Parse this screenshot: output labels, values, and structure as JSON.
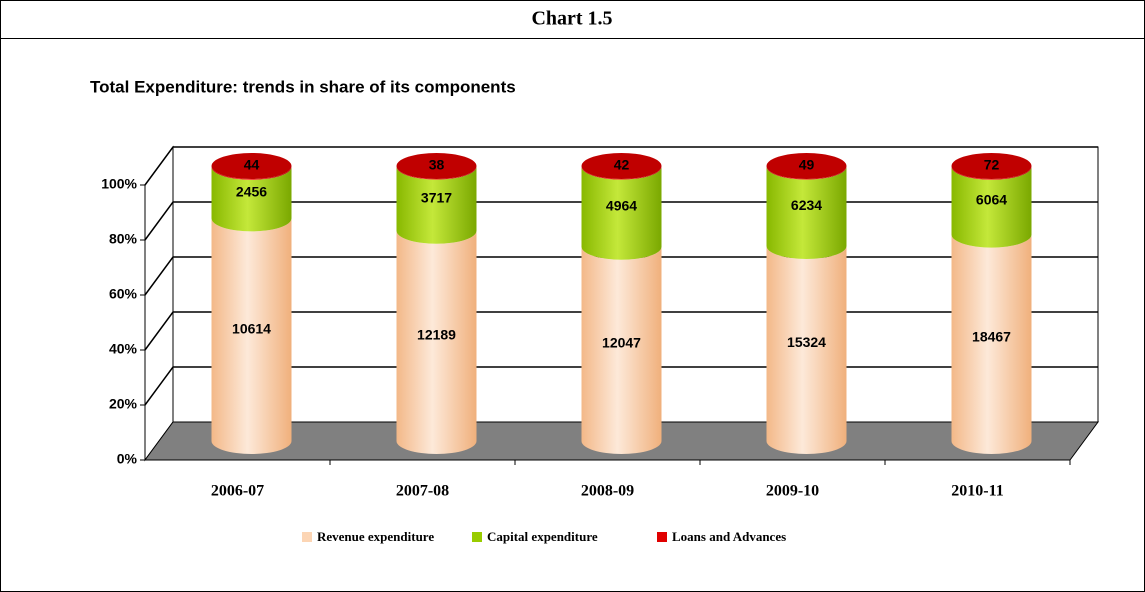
{
  "header": {
    "title": "Chart 1.5"
  },
  "chart_data": {
    "type": "bar",
    "stacking": "percent",
    "title": "Total Expenditure: trends in share of its components",
    "categories": [
      "2006-07",
      "2007-08",
      "2008-09",
      "2009-10",
      "2010-11"
    ],
    "series": [
      {
        "name": "Revenue expenditure",
        "color": "#fcd5b4",
        "values": [
          10614,
          12189,
          12047,
          15324,
          18467
        ]
      },
      {
        "name": "Capital expenditure",
        "color": "#99cc00",
        "values": [
          2456,
          3717,
          4964,
          6234,
          6064
        ]
      },
      {
        "name": "Loans and Advances",
        "color": "#e00000",
        "values": [
          44,
          38,
          42,
          49,
          72
        ]
      }
    ],
    "ylim": [
      0,
      100
    ],
    "yticks": [
      {
        "value": 0,
        "label": "0%"
      },
      {
        "value": 20,
        "label": "20%"
      },
      {
        "value": 40,
        "label": "40%"
      },
      {
        "value": 60,
        "label": "60%"
      },
      {
        "value": 80,
        "label": "80%"
      },
      {
        "value": 100,
        "label": "100%"
      }
    ],
    "grid": true,
    "legend": "bottom"
  }
}
